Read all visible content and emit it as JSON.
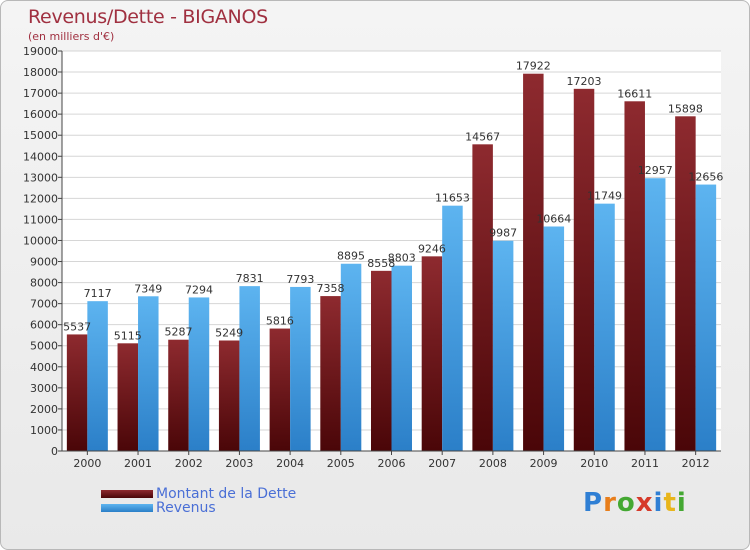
{
  "header": {
    "title": "Revenus/Dette - BIGANOS",
    "subtitle": "(en milliers d'€)"
  },
  "legend": {
    "items": [
      {
        "label": "Montant de la Dette",
        "color": "#6b1115"
      },
      {
        "label": "Revenus",
        "color": "#4ba3e8"
      }
    ]
  },
  "logo": {
    "text": "Proxiti",
    "letters": [
      {
        "ch": "P",
        "color": "#2f7fd4"
      },
      {
        "ch": "r",
        "color": "#e87e1b"
      },
      {
        "ch": "o",
        "color": "#44a832"
      },
      {
        "ch": "x",
        "color": "#d63a2a"
      },
      {
        "ch": "i",
        "color": "#2f7fd4"
      },
      {
        "ch": "t",
        "color": "#e8b51b"
      },
      {
        "ch": "i",
        "color": "#44a832"
      }
    ]
  },
  "chart_data": {
    "type": "bar",
    "title": "Revenus/Dette - BIGANOS",
    "subtitle": "(en milliers d'€)",
    "categories": [
      "2000",
      "2001",
      "2002",
      "2003",
      "2004",
      "2005",
      "2006",
      "2007",
      "2008",
      "2009",
      "2010",
      "2011",
      "2012"
    ],
    "series": [
      {
        "name": "Montant de la Dette",
        "color": "#6b1115",
        "values": [
          5537,
          5115,
          5287,
          5249,
          5816,
          7358,
          8558,
          9246,
          14567,
          17922,
          17203,
          16611,
          15898
        ],
        "labels": [
          "5537",
          "5115",
          "5287",
          "5249",
          "5816",
          "7358",
          "8558",
          "9246",
          "14567",
          "17922",
          "17203",
          "16611",
          "15898"
        ]
      },
      {
        "name": "Revenus",
        "color": "#4ba3e8",
        "values": [
          7117,
          7349,
          7294,
          7831,
          7793,
          8895,
          8803,
          11653,
          9987,
          10664,
          11749,
          12957,
          12656
        ],
        "labels": [
          "7117",
          "7349",
          "7294",
          "7831",
          "7793",
          "8895",
          "8803",
          "11653",
          "9987",
          "10664",
          "11749",
          "12957",
          "12656"
        ]
      }
    ],
    "ylim": [
      0,
      19000
    ],
    "ytick_step": 1000,
    "grid": true,
    "legend_position": "bottom-left"
  }
}
